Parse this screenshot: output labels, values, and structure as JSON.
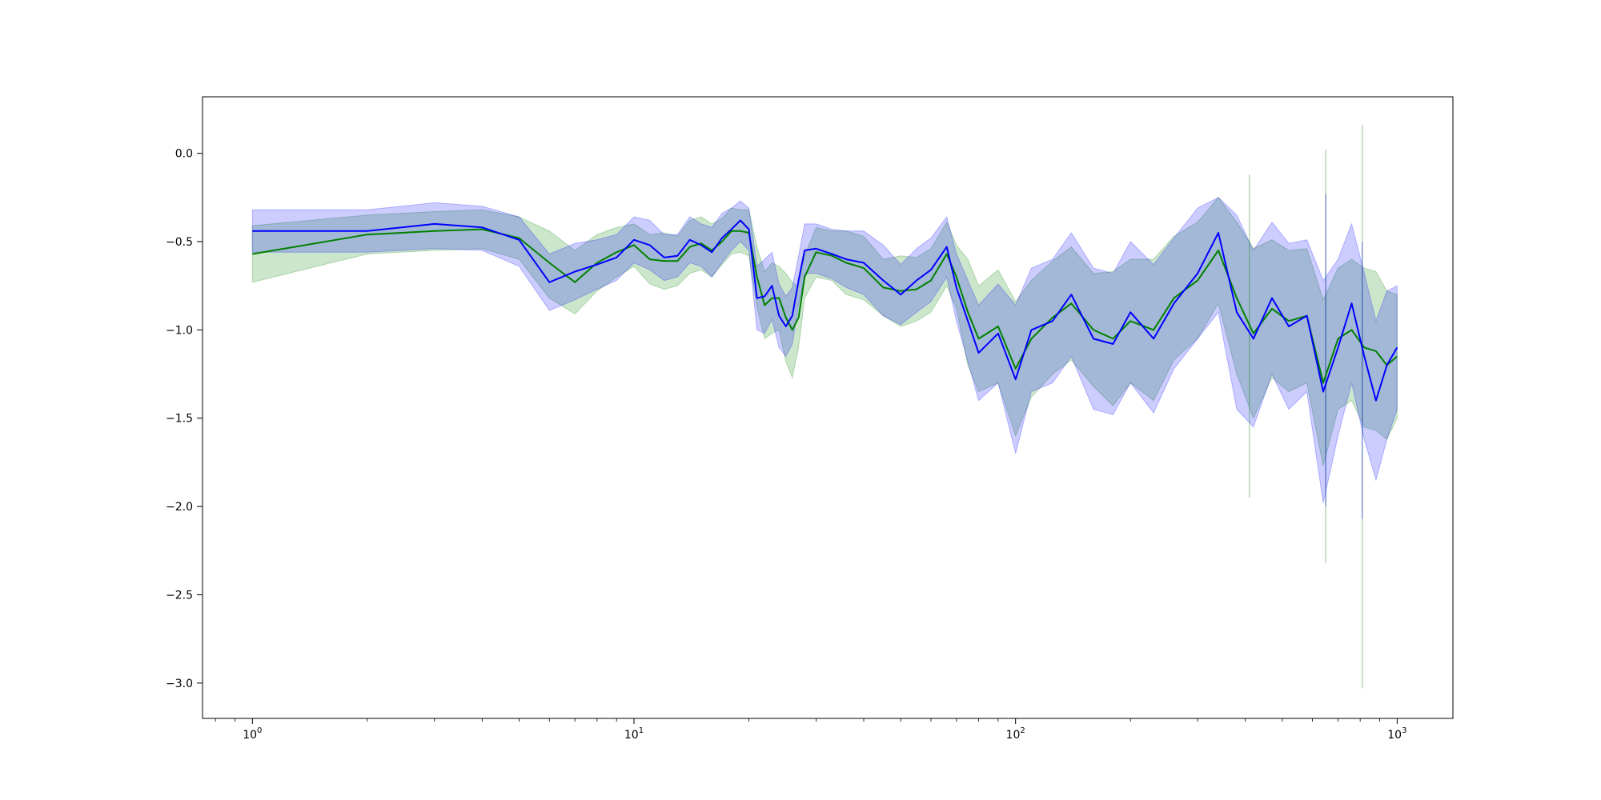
{
  "chart_data": {
    "type": "line",
    "title": "",
    "xlabel": "",
    "ylabel": "",
    "x_scale": "log",
    "xlim": [
      0.74,
      1400
    ],
    "ylim": [
      -3.2,
      0.32
    ],
    "grid": false,
    "x_ticks": [
      {
        "value": 1,
        "base": "10",
        "exp": "0"
      },
      {
        "value": 10,
        "base": "10",
        "exp": "1"
      },
      {
        "value": 100,
        "base": "10",
        "exp": "2"
      },
      {
        "value": 1000,
        "base": "10",
        "exp": "3"
      }
    ],
    "y_ticks": [
      {
        "value": 0.0,
        "label": "0.0"
      },
      {
        "value": -0.5,
        "label": "−0.5"
      },
      {
        "value": -1.0,
        "label": "−1.0"
      },
      {
        "value": -1.5,
        "label": "−1.5"
      },
      {
        "value": -2.0,
        "label": "−2.0"
      },
      {
        "value": -2.5,
        "label": "−2.5"
      },
      {
        "value": -3.0,
        "label": "−3.0"
      }
    ],
    "series": [
      {
        "color": "#008000",
        "band_color": "#008000",
        "band_opacity": 0.2,
        "x": [
          1,
          2,
          3,
          4,
          5,
          6,
          7,
          8,
          9,
          10,
          11,
          12,
          13,
          14,
          15,
          16,
          17,
          18,
          19,
          20,
          21,
          22,
          23,
          24,
          25,
          26,
          27,
          28,
          30,
          33,
          36,
          40,
          45,
          50,
          55,
          60,
          66,
          70,
          75,
          80,
          90,
          100,
          110,
          125,
          140,
          160,
          180,
          200,
          230,
          260,
          300,
          340,
          380,
          420,
          470,
          520,
          580,
          640,
          700,
          760,
          820,
          880,
          940,
          1000
        ],
        "y": [
          -0.57,
          -0.46,
          -0.44,
          -0.43,
          -0.48,
          -0.62,
          -0.73,
          -0.62,
          -0.56,
          -0.52,
          -0.6,
          -0.61,
          -0.61,
          -0.53,
          -0.51,
          -0.55,
          -0.5,
          -0.44,
          -0.44,
          -0.45,
          -0.7,
          -0.86,
          -0.82,
          -0.82,
          -0.93,
          -1.0,
          -0.93,
          -0.7,
          -0.56,
          -0.58,
          -0.62,
          -0.65,
          -0.76,
          -0.78,
          -0.77,
          -0.72,
          -0.57,
          -0.7,
          -0.9,
          -1.05,
          -0.98,
          -1.22,
          -1.05,
          -0.93,
          -0.85,
          -1.0,
          -1.05,
          -0.95,
          -1.0,
          -0.82,
          -0.72,
          -0.55,
          -0.82,
          -1.02,
          -0.88,
          -0.95,
          -0.92,
          -1.3,
          -1.05,
          -1.0,
          -1.1,
          -1.12,
          -1.2,
          -1.15
        ],
        "lower": [
          -0.73,
          -0.57,
          -0.55,
          -0.54,
          -0.6,
          -0.82,
          -0.91,
          -0.78,
          -0.7,
          -0.64,
          -0.74,
          -0.77,
          -0.75,
          -0.68,
          -0.66,
          -0.7,
          -0.63,
          -0.57,
          -0.56,
          -0.58,
          -0.87,
          -1.05,
          -1.02,
          -1.0,
          -1.18,
          -1.27,
          -1.1,
          -0.82,
          -0.7,
          -0.72,
          -0.8,
          -0.83,
          -0.92,
          -0.98,
          -0.95,
          -0.9,
          -0.75,
          -0.88,
          -1.2,
          -1.35,
          -1.3,
          -1.6,
          -1.38,
          -1.25,
          -1.17,
          -1.32,
          -1.43,
          -1.3,
          -1.4,
          -1.17,
          -1.05,
          -0.85,
          -1.25,
          -1.5,
          -1.27,
          -1.35,
          -1.3,
          -1.77,
          -1.45,
          -1.4,
          -1.55,
          -1.57,
          -1.62,
          -1.5
        ],
        "upper": [
          -0.41,
          -0.35,
          -0.33,
          -0.32,
          -0.36,
          -0.44,
          -0.55,
          -0.46,
          -0.42,
          -0.4,
          -0.46,
          -0.45,
          -0.47,
          -0.38,
          -0.36,
          -0.4,
          -0.37,
          -0.31,
          -0.32,
          -0.32,
          -0.53,
          -0.67,
          -0.62,
          -0.64,
          -0.68,
          -0.73,
          -0.76,
          -0.58,
          -0.42,
          -0.44,
          -0.44,
          -0.47,
          -0.6,
          -0.58,
          -0.59,
          -0.54,
          -0.39,
          -0.52,
          -0.6,
          -0.75,
          -0.66,
          -0.84,
          -0.72,
          -0.61,
          -0.53,
          -0.68,
          -0.67,
          -0.6,
          -0.6,
          -0.47,
          -0.39,
          -0.25,
          -0.39,
          -0.54,
          -0.49,
          -0.55,
          -0.54,
          -0.83,
          -0.65,
          -0.6,
          -0.65,
          -0.67,
          -0.78,
          -0.8
        ],
        "spikes": [
          {
            "x": 410,
            "low": -1.95,
            "high": -0.12
          },
          {
            "x": 650,
            "low": -2.32,
            "high": 0.02
          },
          {
            "x": 810,
            "low": -3.03,
            "high": 0.16
          }
        ]
      },
      {
        "color": "#0000ff",
        "band_color": "#0000ff",
        "band_opacity": 0.2,
        "x": [
          1,
          2,
          3,
          4,
          5,
          6,
          7,
          8,
          9,
          10,
          11,
          12,
          13,
          14,
          15,
          16,
          17,
          18,
          19,
          20,
          21,
          22,
          23,
          24,
          25,
          26,
          27,
          28,
          30,
          33,
          36,
          40,
          45,
          50,
          55,
          60,
          66,
          70,
          75,
          80,
          90,
          100,
          110,
          125,
          140,
          160,
          180,
          200,
          230,
          260,
          300,
          340,
          380,
          420,
          470,
          520,
          580,
          640,
          700,
          760,
          820,
          880,
          940,
          1000
        ],
        "y": [
          -0.44,
          -0.44,
          -0.4,
          -0.42,
          -0.49,
          -0.73,
          -0.67,
          -0.63,
          -0.59,
          -0.49,
          -0.52,
          -0.59,
          -0.58,
          -0.49,
          -0.52,
          -0.56,
          -0.48,
          -0.43,
          -0.38,
          -0.43,
          -0.82,
          -0.81,
          -0.75,
          -0.92,
          -0.98,
          -0.92,
          -0.72,
          -0.55,
          -0.54,
          -0.57,
          -0.6,
          -0.62,
          -0.72,
          -0.8,
          -0.72,
          -0.66,
          -0.53,
          -0.76,
          -0.95,
          -1.13,
          -1.02,
          -1.28,
          -1.0,
          -0.95,
          -0.8,
          -1.05,
          -1.08,
          -0.9,
          -1.05,
          -0.85,
          -0.68,
          -0.45,
          -0.9,
          -1.05,
          -0.82,
          -0.98,
          -0.92,
          -1.35,
          -1.1,
          -0.85,
          -1.15,
          -1.4,
          -1.2,
          -1.1
        ],
        "lower": [
          -0.56,
          -0.56,
          -0.54,
          -0.55,
          -0.64,
          -0.89,
          -0.83,
          -0.77,
          -0.72,
          -0.62,
          -0.66,
          -0.72,
          -0.7,
          -0.62,
          -0.64,
          -0.7,
          -0.62,
          -0.55,
          -0.5,
          -0.55,
          -1.0,
          -1.02,
          -0.94,
          -1.1,
          -1.15,
          -1.08,
          -0.86,
          -0.68,
          -0.68,
          -0.71,
          -0.76,
          -0.8,
          -0.92,
          -0.97,
          -0.9,
          -0.84,
          -0.7,
          -0.95,
          -1.18,
          -1.4,
          -1.3,
          -1.7,
          -1.35,
          -1.3,
          -1.15,
          -1.45,
          -1.48,
          -1.3,
          -1.47,
          -1.22,
          -1.05,
          -0.9,
          -1.45,
          -1.55,
          -1.25,
          -1.45,
          -1.35,
          -1.98,
          -1.6,
          -1.3,
          -1.62,
          -1.85,
          -1.62,
          -1.45
        ],
        "upper": [
          -0.32,
          -0.32,
          -0.28,
          -0.3,
          -0.36,
          -0.57,
          -0.51,
          -0.49,
          -0.46,
          -0.36,
          -0.38,
          -0.46,
          -0.46,
          -0.36,
          -0.4,
          -0.42,
          -0.34,
          -0.31,
          -0.27,
          -0.31,
          -0.64,
          -0.6,
          -0.56,
          -0.74,
          -0.81,
          -0.76,
          -0.58,
          -0.4,
          -0.4,
          -0.43,
          -0.44,
          -0.44,
          -0.52,
          -0.63,
          -0.54,
          -0.48,
          -0.36,
          -0.57,
          -0.72,
          -0.86,
          -0.74,
          -0.86,
          -0.65,
          -0.6,
          -0.45,
          -0.65,
          -0.68,
          -0.5,
          -0.63,
          -0.48,
          -0.31,
          -0.25,
          -0.35,
          -0.55,
          -0.39,
          -0.51,
          -0.49,
          -0.72,
          -0.6,
          -0.4,
          -0.68,
          -0.95,
          -0.78,
          -0.75
        ],
        "spikes": [
          {
            "x": 650,
            "low": -2.0,
            "high": -0.23
          },
          {
            "x": 810,
            "low": -2.07,
            "high": -0.5
          }
        ]
      }
    ]
  }
}
